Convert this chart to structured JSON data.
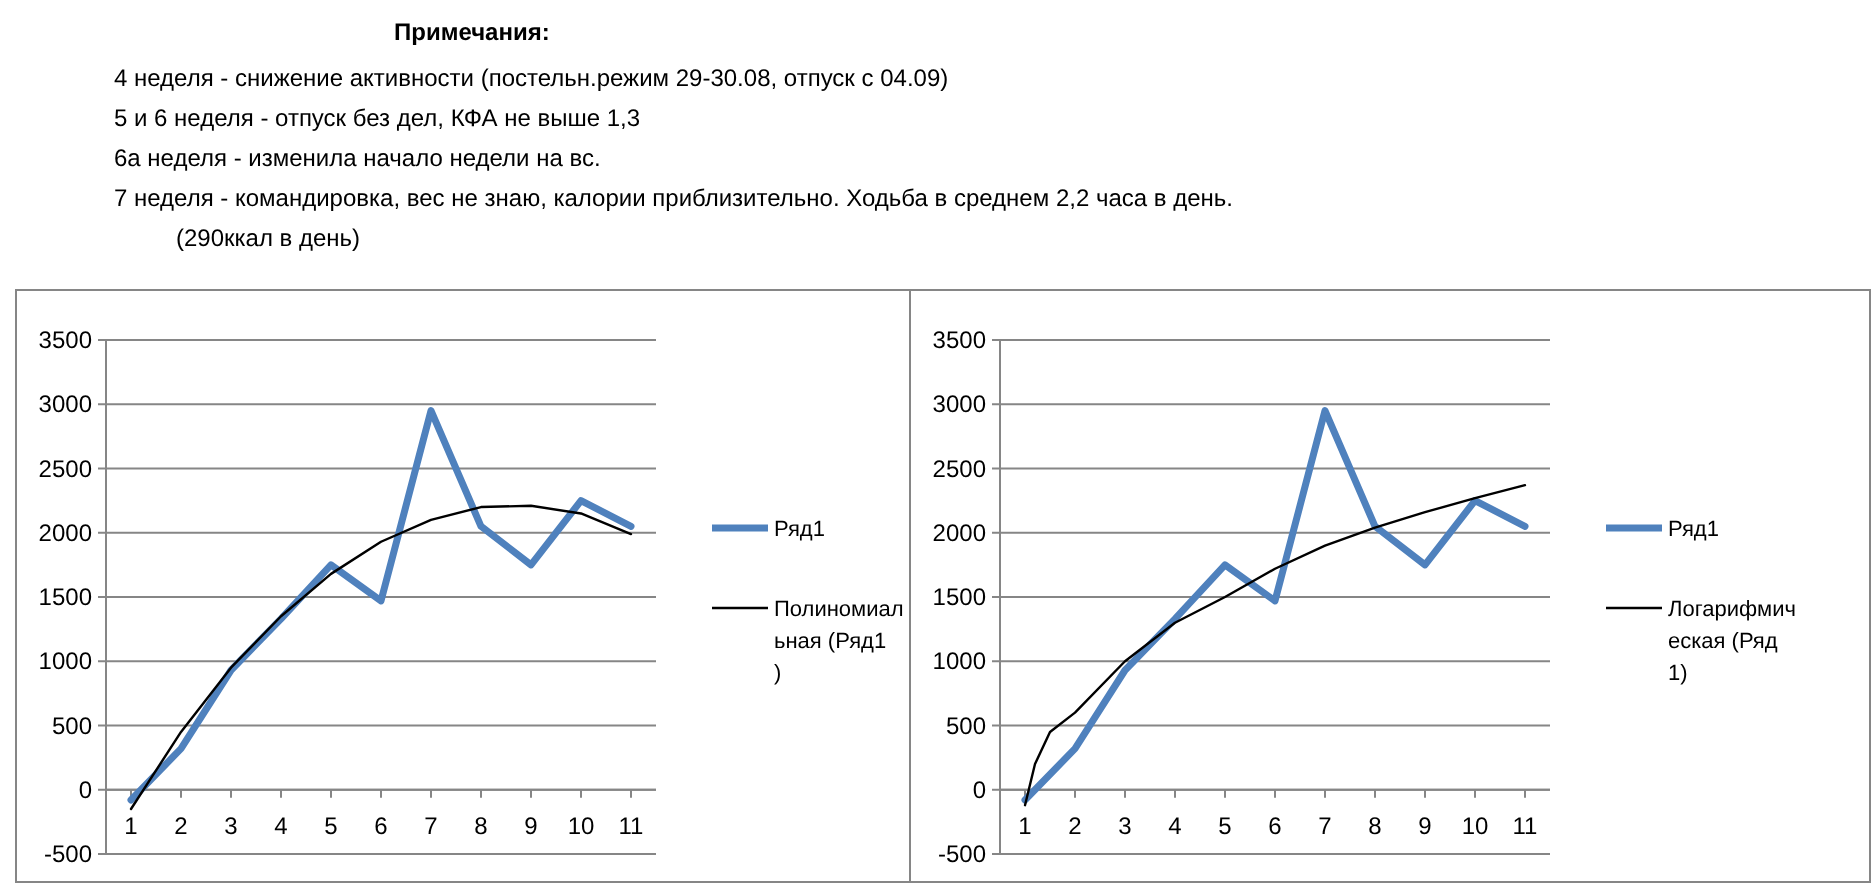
{
  "chart_data": [
    {
      "type": "other",
      "title": "Примечания:",
      "annotations": [
        "4 неделя - снижение активности (постельн.режим 29-30.08, отпуск с 04.09)",
        "5 и 6 неделя - отпуск без дел, КФА не выше 1,3",
        "6а неделя - изменила начало недели на вс.",
        "7 неделя - командировка, вес не знаю, калории приблизительно. Ходьба в среднем 2,2 часа в день.",
        "(290ккал в день)"
      ]
    },
    {
      "type": "line",
      "x": [
        1,
        2,
        3,
        4,
        5,
        6,
        7,
        8,
        9,
        10,
        11
      ],
      "xlim": [
        0.5,
        11.5
      ],
      "xticks": [
        1,
        2,
        3,
        4,
        5,
        6,
        7,
        8,
        9,
        10,
        11
      ],
      "ylim": [
        -500,
        3500
      ],
      "yticks": [
        -500,
        0,
        500,
        1000,
        1500,
        2000,
        2500,
        3000,
        3500
      ],
      "grid": "y",
      "legend": "right",
      "marker": "none",
      "series": [
        {
          "name": "Ряд1",
          "color": "#4f81bd",
          "values": [
            -80,
            320,
            930,
            1330,
            1750,
            1470,
            2950,
            2050,
            1750,
            2250,
            2050
          ]
        },
        {
          "name": "Полиномиальная (Ряд1)",
          "color": "#000000",
          "x": [
            1,
            2,
            3,
            4,
            5,
            6,
            7,
            8,
            9,
            10,
            11
          ],
          "values": [
            -150,
            450,
            950,
            1350,
            1680,
            1930,
            2100,
            2200,
            2210,
            2150,
            1990
          ]
        }
      ]
    },
    {
      "type": "line",
      "x": [
        1,
        2,
        3,
        4,
        5,
        6,
        7,
        8,
        9,
        10,
        11
      ],
      "xlim": [
        0.5,
        11.5
      ],
      "xticks": [
        1,
        2,
        3,
        4,
        5,
        6,
        7,
        8,
        9,
        10,
        11
      ],
      "ylim": [
        -500,
        3500
      ],
      "yticks": [
        -500,
        0,
        500,
        1000,
        1500,
        2000,
        2500,
        3000,
        3500
      ],
      "grid": "y",
      "legend": "right",
      "marker": "none",
      "series": [
        {
          "name": "Ряд1",
          "color": "#4f81bd",
          "values": [
            -80,
            320,
            930,
            1330,
            1750,
            1470,
            2950,
            2050,
            1750,
            2250,
            2050
          ]
        },
        {
          "name": "Логарифмическая (Ряд1)",
          "color": "#000000",
          "x": [
            1,
            1.2,
            1.5,
            2,
            3,
            4,
            5,
            6,
            7,
            8,
            9,
            10,
            11
          ],
          "values": [
            -120,
            200,
            450,
            600,
            1000,
            1300,
            1500,
            1720,
            1900,
            2040,
            2160,
            2270,
            2370
          ]
        }
      ]
    }
  ]
}
